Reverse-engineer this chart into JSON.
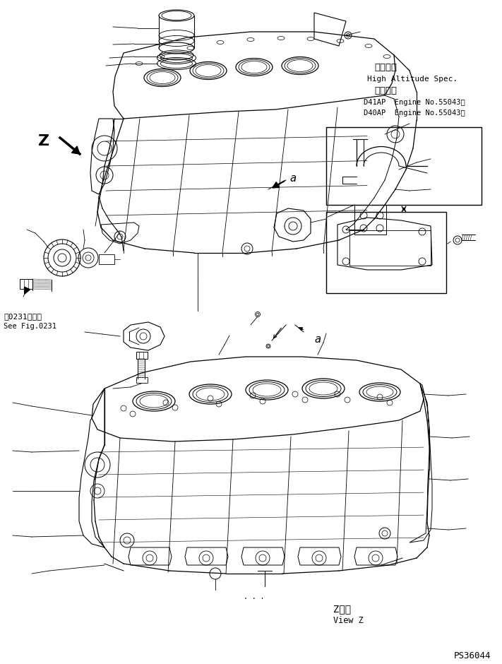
{
  "bg_color": "#ffffff",
  "line_color": "#000000",
  "fig_width": 7.11,
  "fig_height": 9.4,
  "dpi": 100,
  "annotation_box_text_lines": [
    "高地仕様",
    "High Altitude Spec.",
    "適用号機",
    "D41AP  Engine No.55043～",
    "D40AP  Engine No.55043～"
  ],
  "bottom_left_text_lines": [
    "第0231図参照",
    "See Fig.0231"
  ],
  "bottom_label_lines": [
    "Z　視",
    "View Z"
  ],
  "part_number": "PS36044",
  "z_label": "Z",
  "a_label_upper": "a",
  "a_label_lower": "a"
}
